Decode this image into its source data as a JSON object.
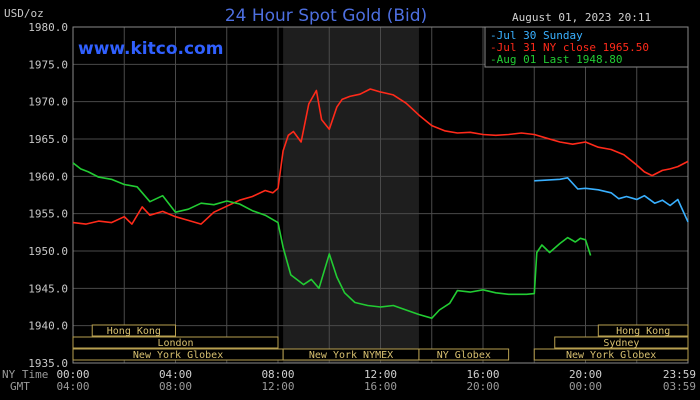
{
  "header": {
    "unit": "USD/oz",
    "title": "24 Hour Spot Gold (Bid)",
    "datetime": "August 01, 2023 20:11",
    "website": "www.kitco.com"
  },
  "legend": [
    {
      "label": "Jul 30 Sunday",
      "color": "#39b0ff"
    },
    {
      "label": "Jul 31 NY close 1965.50",
      "color": "#ff2a1a"
    },
    {
      "label": "Aug 01 Last 1948.80",
      "color": "#22cc33"
    }
  ],
  "x_axis": {
    "row1_label": "NY Time",
    "row2_label": "GMT",
    "ny_ticks": [
      "00:00",
      "04:00",
      "08:00",
      "12:00",
      "16:00",
      "20:00",
      "23:59"
    ],
    "gmt_ticks": [
      "04:00",
      "08:00",
      "12:00",
      "16:00",
      "20:00",
      "00:00",
      "03:59"
    ]
  },
  "markets": [
    {
      "label": "Hong Kong",
      "row": 0,
      "start": 0.75,
      "end": 4.0
    },
    {
      "label": "London",
      "row": 1,
      "start": 0.0,
      "end": 8.0
    },
    {
      "label": "New York Globex",
      "row": 2,
      "start": 0.0,
      "end": 8.2
    },
    {
      "label": "New York NYMEX",
      "row": 2,
      "start": 8.2,
      "end": 13.5
    },
    {
      "label": "NY Globex",
      "row": 2,
      "start": 13.5,
      "end": 17.0
    },
    {
      "label": "Hong Kong",
      "row": 0,
      "start": 20.5,
      "end": 24.0
    },
    {
      "label": "Sydney",
      "row": 1,
      "start": 18.8,
      "end": 24.0
    },
    {
      "label": "New York Globex",
      "row": 2,
      "start": 18.0,
      "end": 24.0
    }
  ],
  "chart_data": {
    "type": "line",
    "title": "24 Hour Spot Gold (Bid)",
    "ylabel": "USD/oz",
    "xlabel": "NY Time",
    "x_unit": "hours (NY time)",
    "xlim": [
      0,
      24
    ],
    "ylim": [
      1935,
      1980
    ],
    "yticks": [
      1935,
      1940,
      1945,
      1950,
      1955,
      1960,
      1965,
      1970,
      1975,
      1980
    ],
    "grid": true,
    "shaded_hours": [
      8.2,
      13.5
    ],
    "legend_position": "top-right",
    "series": [
      {
        "name": "Jul 30 Sunday",
        "color": "#39b0ff",
        "x": [
          18.0,
          18.5,
          19.0,
          19.3,
          19.7,
          20.0,
          20.5,
          21.0,
          21.3,
          21.6,
          22.0,
          22.3,
          22.7,
          23.0,
          23.3,
          23.6,
          24.0
        ],
        "y": [
          1959.4,
          1959.5,
          1959.6,
          1959.8,
          1958.3,
          1958.4,
          1958.2,
          1957.8,
          1957.0,
          1957.3,
          1956.9,
          1957.4,
          1956.4,
          1956.8,
          1956.1,
          1956.9,
          1953.9
        ]
      },
      {
        "name": "Jul 31 NY close 1965.50",
        "color": "#ff2a1a",
        "x": [
          0.0,
          0.5,
          1.0,
          1.5,
          2.0,
          2.3,
          2.7,
          3.0,
          3.5,
          4.0,
          4.5,
          5.0,
          5.5,
          6.0,
          6.5,
          7.0,
          7.5,
          7.8,
          8.0,
          8.2,
          8.4,
          8.6,
          8.9,
          9.2,
          9.5,
          9.7,
          10.0,
          10.3,
          10.5,
          10.8,
          11.2,
          11.6,
          12.0,
          12.5,
          13.0,
          13.5,
          14.0,
          14.5,
          15.0,
          15.5,
          16.0,
          16.5,
          17.0,
          17.5,
          18.0,
          18.5,
          19.0,
          19.5,
          20.0,
          20.5,
          21.0,
          21.5,
          22.0,
          22.3,
          22.6,
          23.0,
          23.3,
          23.6,
          24.0
        ],
        "y": [
          1953.8,
          1953.6,
          1954.0,
          1953.8,
          1954.6,
          1953.6,
          1955.9,
          1954.8,
          1955.3,
          1954.6,
          1954.1,
          1953.6,
          1955.2,
          1956.0,
          1956.8,
          1957.3,
          1958.1,
          1957.8,
          1958.4,
          1963.4,
          1965.5,
          1966.0,
          1964.6,
          1969.7,
          1971.5,
          1967.6,
          1966.3,
          1969.3,
          1970.3,
          1970.7,
          1971.0,
          1971.7,
          1971.3,
          1970.9,
          1969.8,
          1968.2,
          1966.8,
          1966.1,
          1965.8,
          1965.9,
          1965.6,
          1965.5,
          1965.6,
          1965.8,
          1965.6,
          1965.1,
          1964.6,
          1964.3,
          1964.6,
          1963.9,
          1963.6,
          1962.9,
          1961.5,
          1960.6,
          1960.1,
          1960.8,
          1961.0,
          1961.3,
          1962.0
        ]
      },
      {
        "name": "Aug 01 Last 1948.80",
        "color": "#22cc33",
        "x": [
          0.0,
          0.3,
          0.6,
          1.0,
          1.5,
          2.0,
          2.5,
          3.0,
          3.5,
          4.0,
          4.5,
          5.0,
          5.5,
          6.0,
          6.5,
          7.0,
          7.5,
          8.0,
          8.2,
          8.5,
          9.0,
          9.3,
          9.6,
          10.0,
          10.3,
          10.6,
          11.0,
          11.5,
          12.0,
          12.5,
          13.0,
          13.5,
          14.0,
          14.3,
          14.7,
          15.0,
          15.5,
          16.0,
          16.5,
          17.0,
          17.3,
          17.5,
          17.7,
          18.0,
          18.1,
          18.3,
          18.6,
          19.0,
          19.3,
          19.6,
          19.8,
          20.0,
          20.2
        ],
        "y": [
          1961.8,
          1961.0,
          1960.6,
          1959.9,
          1959.6,
          1958.9,
          1958.6,
          1956.6,
          1957.4,
          1955.2,
          1955.6,
          1956.4,
          1956.2,
          1956.7,
          1956.3,
          1955.4,
          1954.8,
          1953.8,
          1950.5,
          1946.8,
          1945.5,
          1946.2,
          1945.0,
          1949.6,
          1946.5,
          1944.4,
          1943.1,
          1942.7,
          1942.5,
          1942.7,
          1942.1,
          1941.5,
          1941.0,
          1942.1,
          1943.0,
          1944.7,
          1944.5,
          1944.8,
          1944.4,
          1944.2,
          1944.2,
          1944.2,
          1944.2,
          1944.3,
          1949.8,
          1950.8,
          1949.8,
          1951.0,
          1951.8,
          1951.2,
          1951.7,
          1951.5,
          1949.4
        ]
      }
    ]
  }
}
